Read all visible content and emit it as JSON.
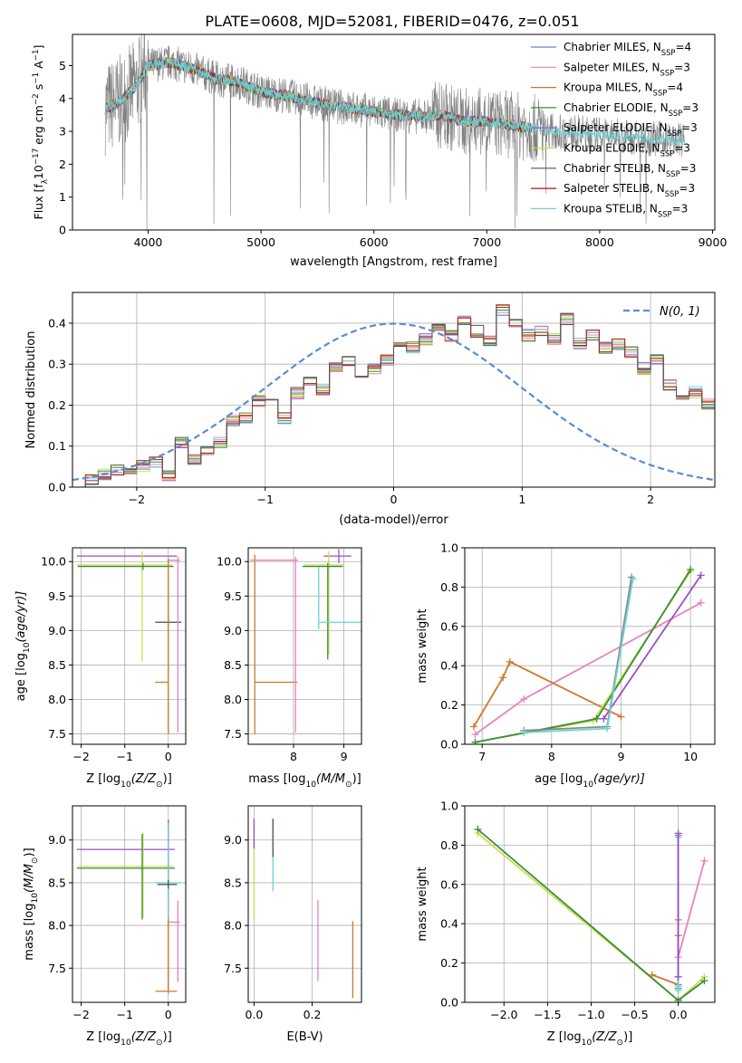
{
  "figure": {
    "title": "PLATE=0608, MJD=52081, FIBERID=0476, z=0.051"
  },
  "legend_entries": [
    {
      "label": "Chabrier MILES, N",
      "sub": "SSP",
      "tail": "=4",
      "color": "#6a7fd8"
    },
    {
      "label": "Salpeter MILES, N",
      "sub": "SSP",
      "tail": "=3",
      "color": "#e882be"
    },
    {
      "label": "Kroupa MILES, N",
      "sub": "SSP",
      "tail": "=4",
      "color": "#d0782a"
    },
    {
      "label": "Chabrier ELODIE, N",
      "sub": "SSP",
      "tail": "=3",
      "color": "#3d8c3d"
    },
    {
      "label": "Salpeter ELODIE, N",
      "sub": "SSP",
      "tail": "=3",
      "color": "#9a4ec8"
    },
    {
      "label": "Kroupa ELODIE, N",
      "sub": "SSP",
      "tail": "=3",
      "color": "#c8e04a"
    },
    {
      "label": "Chabrier STELIB, N",
      "sub": "SSP",
      "tail": "=3",
      "color": "#555555"
    },
    {
      "label": "Salpeter STELIB, N",
      "sub": "SSP",
      "tail": "=3",
      "color": "#b01010"
    },
    {
      "label": "Kroupa STELIB, N",
      "sub": "SSP",
      "tail": "=3",
      "color": "#6ad4d8"
    }
  ],
  "chart_data": [
    {
      "id": "spectrum",
      "type": "line",
      "ylabel": "Flux [f",
      "ylabel_sub": "λ",
      "ylabel_tail": "10",
      "ylabel_sup1": "−17",
      "ylabel_tail2": " erg cm",
      "ylabel_sup2": "−2",
      "ylabel_tail3": " s",
      "ylabel_sup3": "−1",
      "ylabel_tail4": " A",
      "ylabel_sup4": "−1",
      "ylabel_end": "]",
      "xlabel": "wavelength [Angstrom, rest frame]",
      "xlim": [
        3330,
        9020
      ],
      "ylim": [
        0,
        5.95
      ],
      "xticks": [
        "4000",
        "5000",
        "6000",
        "7000",
        "8000",
        "9000"
      ],
      "xtick_values": [
        4000,
        5000,
        6000,
        7000,
        8000,
        9000
      ],
      "yticks": [
        "0",
        "1",
        "2",
        "3",
        "4",
        "5"
      ],
      "ytick_values": [
        0,
        1,
        2,
        3,
        4,
        5
      ],
      "continuum": {
        "x": [
          3620,
          3750,
          3900,
          4000,
          4200,
          4400,
          4600,
          4800,
          5000,
          5200,
          5400,
          5600,
          5800,
          6000,
          6200,
          6400,
          6600,
          6800,
          7000,
          7200,
          7400,
          7600,
          7800,
          8000,
          8200,
          8400,
          8600,
          8750
        ],
        "y": [
          3.7,
          3.9,
          4.4,
          5.0,
          5.1,
          4.9,
          4.6,
          4.5,
          4.2,
          4.1,
          3.95,
          3.8,
          3.7,
          3.6,
          3.5,
          3.45,
          3.5,
          3.3,
          3.3,
          3.2,
          3.1,
          3.0,
          2.95,
          2.9,
          2.85,
          2.8,
          2.75,
          2.7
        ]
      }
    },
    {
      "id": "residual_histogram",
      "type": "bar",
      "xlabel": "(data-model)/error",
      "ylabel": "Normed distribution",
      "xlim": [
        -2.5,
        2.5
      ],
      "ylim": [
        0,
        0.475
      ],
      "xticks": [
        "−2",
        "−1",
        "0",
        "1",
        "2"
      ],
      "xtick_values": [
        -2,
        -1,
        0,
        1,
        2
      ],
      "yticks": [
        "0.0",
        "0.1",
        "0.2",
        "0.3",
        "0.4"
      ],
      "ytick_values": [
        0,
        0.1,
        0.2,
        0.3,
        0.4
      ],
      "legend": "N(0, 1)",
      "bin_width": 0.1,
      "bin_start": -2.5,
      "values": [
        0.01,
        0.02,
        0.03,
        0.04,
        0.03,
        0.05,
        0.06,
        0.03,
        0.11,
        0.07,
        0.09,
        0.11,
        0.16,
        0.17,
        0.21,
        0.21,
        0.17,
        0.23,
        0.26,
        0.24,
        0.29,
        0.31,
        0.26,
        0.29,
        0.31,
        0.35,
        0.34,
        0.36,
        0.39,
        0.37,
        0.41,
        0.38,
        0.36,
        0.43,
        0.4,
        0.37,
        0.38,
        0.36,
        0.41,
        0.35,
        0.37,
        0.34,
        0.35,
        0.33,
        0.29,
        0.31,
        0.25,
        0.21,
        0.23,
        0.2,
        0.16,
        0.14,
        0.11,
        0.1,
        0.08,
        0.07,
        0.05,
        0.04,
        0.04,
        0.03
      ]
    },
    {
      "id": "age_vs_Z",
      "type": "scatter",
      "xlabel": "Z [log",
      "xlabel_sub": "10",
      "xlabel_tail": "(Z/Z",
      "xlabel_sub2": "⊙",
      "xlabel_end": ")]",
      "ylabel": "age  [log",
      "ylabel_sub": "10",
      "ylabel_tail": "(age/yr)]",
      "xlim": [
        -2.2,
        0.4
      ],
      "ylim": [
        7.35,
        10.2
      ],
      "xticks": [
        "−2",
        "−1",
        "0"
      ],
      "xtick_values": [
        -2,
        -1,
        0
      ],
      "yticks": [
        "7.5",
        "8.0",
        "8.5",
        "9.0",
        "9.5",
        "10.0"
      ],
      "ytick_values": [
        7.5,
        8.0,
        8.5,
        9.0,
        9.5,
        10.0
      ],
      "points": [
        {
          "x": 0.0,
          "y": 10.08,
          "xerr": [
            2.1,
            0.2
          ],
          "yerr": [
            0.0,
            0.0
          ],
          "color": "#9a4ec8"
        },
        {
          "x": -0.6,
          "y": 9.95,
          "xerr": [
            1.5,
            0.7
          ],
          "yerr": [
            1.4,
            0.2
          ],
          "color": "#c8e04a"
        },
        {
          "x": -0.58,
          "y": 9.93,
          "xerr": [
            1.5,
            0.7
          ],
          "yerr": [
            0.05,
            0.05
          ],
          "color": "#3d8c3d"
        },
        {
          "x": 0.0,
          "y": 9.12,
          "xerr": [
            0.3,
            0.3
          ],
          "yerr": [
            1.6,
            0.9
          ],
          "color": "#6ad4d8"
        },
        {
          "x": 0.0,
          "y": 9.12,
          "xerr": [
            0.3,
            0.3
          ],
          "yerr": [
            0.05,
            0.05
          ],
          "color": "#555555"
        },
        {
          "x": 0.0,
          "y": 8.25,
          "xerr": [
            0.3,
            0.0
          ],
          "yerr": [
            0.75,
            1.8
          ],
          "color": "#d0782a"
        },
        {
          "x": 0.22,
          "y": 10.02,
          "xerr": [
            0.2,
            0.05
          ],
          "yerr": [
            2.5,
            0.05
          ],
          "color": "#e882be"
        }
      ]
    },
    {
      "id": "age_vs_mass",
      "type": "scatter",
      "xlabel": "mass [log",
      "xlabel_sub": "10",
      "xlabel_tail": "(M/M",
      "xlabel_sub2": "⊙",
      "xlabel_end": ")]",
      "xlim": [
        7.1,
        9.35
      ],
      "ylim": [
        7.35,
        10.2
      ],
      "xticks": [
        "8",
        "9"
      ],
      "xtick_values": [
        8,
        9
      ],
      "yticks": [
        "7.5",
        "8.0",
        "8.5",
        "9.0",
        "9.5",
        "10.0"
      ],
      "ytick_values": [
        7.5,
        8.0,
        8.5,
        9.0,
        9.5,
        10.0
      ],
      "points": [
        {
          "x": 8.9,
          "y": 10.08,
          "xerr": [
            0.3,
            0.25
          ],
          "yerr": [
            0.1,
            0.1
          ],
          "color": "#9a4ec8"
        },
        {
          "x": 8.7,
          "y": 9.95,
          "xerr": [
            0.5,
            0.3
          ],
          "yerr": [
            1.3,
            0.2
          ],
          "color": "#c8e04a"
        },
        {
          "x": 8.68,
          "y": 9.93,
          "xerr": [
            0.5,
            0.3
          ],
          "yerr": [
            1.35,
            0.05
          ],
          "color": "#3d8c3d"
        },
        {
          "x": 8.5,
          "y": 9.12,
          "xerr": [
            0.0,
            0.9
          ],
          "yerr": [
            0.1,
            0.8
          ],
          "color": "#6ad4d8"
        },
        {
          "x": 7.23,
          "y": 8.25,
          "xerr": [
            0.0,
            0.85
          ],
          "yerr": [
            0.75,
            1.85
          ],
          "color": "#d0782a"
        },
        {
          "x": 8.04,
          "y": 10.02,
          "xerr": [
            0.9,
            0.05
          ],
          "yerr": [
            2.5,
            0.05
          ],
          "color": "#e882be"
        }
      ]
    },
    {
      "id": "massweight_vs_age",
      "type": "line",
      "xlabel": "age  [log",
      "xlabel_sub": "10",
      "xlabel_tail": "(age/yr)]",
      "ylabel": "mass weight",
      "xlim": [
        6.75,
        10.35
      ],
      "ylim": [
        0,
        1.0
      ],
      "xticks": [
        "7",
        "8",
        "9",
        "10"
      ],
      "xtick_values": [
        7,
        8,
        9,
        10
      ],
      "yticks": [
        "0.0",
        "0.2",
        "0.4",
        "0.6",
        "0.8",
        "1.0"
      ],
      "ytick_values": [
        0,
        0.2,
        0.4,
        0.6,
        0.8,
        1.0
      ],
      "series": [
        {
          "color": "#e882be",
          "x": [
            6.9,
            7.6,
            10.15
          ],
          "y": [
            0.05,
            0.23,
            0.72
          ]
        },
        {
          "color": "#d0782a",
          "x": [
            6.88,
            7.3,
            7.4,
            9.0
          ],
          "y": [
            0.09,
            0.34,
            0.42,
            0.14
          ]
        },
        {
          "color": "#9a4ec8",
          "x": [
            8.75,
            10.15
          ],
          "y": [
            0.13,
            0.86
          ]
        },
        {
          "color": "#c8e04a",
          "x": [
            6.9,
            8.6,
            10.0
          ],
          "y": [
            0.01,
            0.12,
            0.88
          ]
        },
        {
          "color": "#3d8c3d",
          "x": [
            6.9,
            8.65,
            10.0
          ],
          "y": [
            0.01,
            0.13,
            0.89
          ]
        },
        {
          "color": "#888888",
          "x": [
            7.6,
            8.8,
            9.15
          ],
          "y": [
            0.07,
            0.09,
            0.85
          ]
        },
        {
          "color": "#6ad4d8",
          "x": [
            7.6,
            8.8,
            9.17
          ],
          "y": [
            0.06,
            0.08,
            0.84
          ]
        }
      ]
    },
    {
      "id": "mass_vs_Z",
      "type": "scatter",
      "xlabel": "Z [log",
      "xlabel_sub": "10",
      "xlabel_tail": "(Z/Z",
      "xlabel_sub2": "⊙",
      "xlabel_end": ")]",
      "ylabel": "mass [log",
      "ylabel_sub": "10",
      "ylabel_tail": "(M/M",
      "ylabel_sub2": "⊙",
      "ylabel_end": ")]",
      "xlim": [
        -2.2,
        0.4
      ],
      "ylim": [
        7.1,
        9.4
      ],
      "xticks": [
        "−2",
        "−1",
        "0"
      ],
      "xtick_values": [
        -2,
        -1,
        0
      ],
      "yticks": [
        "7.5",
        "8.0",
        "8.5",
        "9.0"
      ],
      "ytick_values": [
        7.5,
        8.0,
        8.5,
        9.0
      ],
      "points": [
        {
          "x": 0.0,
          "y": 8.89,
          "xerr": [
            2.1,
            0.15
          ],
          "yerr": [
            0.0,
            0.35
          ],
          "color": "#9a4ec8"
        },
        {
          "x": -0.58,
          "y": 8.69,
          "xerr": [
            1.5,
            0.7
          ],
          "yerr": [
            0.6,
            0.4
          ],
          "color": "#c8e04a"
        },
        {
          "x": -0.6,
          "y": 8.67,
          "xerr": [
            1.5,
            0.75
          ],
          "yerr": [
            0.6,
            0.4
          ],
          "color": "#3d8c3d"
        },
        {
          "x": 0.0,
          "y": 8.6,
          "xerr": [
            0.0,
            0.0
          ],
          "yerr": [
            1.4,
            0.6
          ],
          "color": "#b01010"
        },
        {
          "x": 0.0,
          "y": 8.5,
          "xerr": [
            0.3,
            0.3
          ],
          "yerr": [
            1.3,
            0.7
          ],
          "color": "#6ad4d8"
        },
        {
          "x": 0.0,
          "y": 8.48,
          "xerr": [
            0.25,
            0.2
          ],
          "yerr": [
            0.05,
            0.05
          ],
          "color": "#555555"
        },
        {
          "x": 0.0,
          "y": 7.23,
          "xerr": [
            0.3,
            0.2
          ],
          "yerr": [
            0.0,
            0.85
          ],
          "color": "#d0782a"
        },
        {
          "x": 0.22,
          "y": 8.04,
          "xerr": [
            0.2,
            0.05
          ],
          "yerr": [
            0.7,
            0.25
          ],
          "color": "#e882be"
        }
      ]
    },
    {
      "id": "mass_vs_EBV",
      "type": "scatter",
      "xlabel": "E(B-V)",
      "xlim": [
        -0.02,
        0.37
      ],
      "ylim": [
        7.1,
        9.4
      ],
      "xticks": [
        "0.0",
        "0.2"
      ],
      "xtick_values": [
        0.0,
        0.2
      ],
      "yticks": [
        "7.5",
        "8.0",
        "8.5",
        "9.0"
      ],
      "ytick_values": [
        7.5,
        8.0,
        8.5,
        9.0
      ],
      "points": [
        {
          "x": 0.0,
          "y": 8.7,
          "xerr": [
            0,
            0
          ],
          "yerr": [
            0.6,
            0.55
          ],
          "color": "#c8e04a"
        },
        {
          "x": 0.0,
          "y": 8.9,
          "xerr": [
            0,
            0
          ],
          "yerr": [
            0.0,
            0.35
          ],
          "color": "#9a4ec8"
        },
        {
          "x": 0.065,
          "y": 8.85,
          "xerr": [
            0,
            0
          ],
          "yerr": [
            0.45,
            0.4
          ],
          "color": "#6ad4d8"
        },
        {
          "x": 0.065,
          "y": 9.0,
          "xerr": [
            0,
            0
          ],
          "yerr": [
            0.2,
            0.25
          ],
          "color": "#555555"
        },
        {
          "x": 0.22,
          "y": 7.8,
          "xerr": [
            0,
            0
          ],
          "yerr": [
            0.45,
            0.5
          ],
          "color": "#e882be"
        },
        {
          "x": 0.34,
          "y": 7.6,
          "xerr": [
            0,
            0
          ],
          "yerr": [
            0.45,
            0.45
          ],
          "color": "#d0782a"
        }
      ]
    },
    {
      "id": "massweight_vs_Z",
      "type": "line",
      "xlabel": "Z [log",
      "xlabel_sub": "10",
      "xlabel_tail": "(Z/Z",
      "xlabel_sub2": "⊙",
      "xlabel_end": ")]",
      "ylabel": "mass weight",
      "xlim": [
        -2.45,
        0.42
      ],
      "ylim": [
        0,
        1.0
      ],
      "xticks": [
        "−2.0",
        "−1.5",
        "−1.0",
        "−0.5",
        "0.0"
      ],
      "xtick_values": [
        -2.0,
        -1.5,
        -1.0,
        -0.5,
        0.0
      ],
      "yticks": [
        "0.0",
        "0.2",
        "0.4",
        "0.6",
        "0.8",
        "1.0"
      ],
      "ytick_values": [
        0,
        0.2,
        0.4,
        0.6,
        0.8,
        1.0
      ],
      "series": [
        {
          "color": "#c8e04a",
          "x": [
            -2.3,
            0.0,
            0.3
          ],
          "y": [
            0.86,
            0.01,
            0.13
          ]
        },
        {
          "color": "#3d8c3d",
          "x": [
            -2.3,
            0.0,
            0.3
          ],
          "y": [
            0.88,
            0.01,
            0.11
          ]
        },
        {
          "color": "#d0782a",
          "x": [
            -0.3,
            0.0,
            0.0,
            0.0
          ],
          "y": [
            0.14,
            0.09,
            0.34,
            0.42
          ]
        },
        {
          "color": "#e882be",
          "x": [
            0.0,
            0.3
          ],
          "y": [
            0.23,
            0.72
          ]
        },
        {
          "color": "#888888",
          "x": [
            0.0,
            0.0,
            0.0
          ],
          "y": [
            0.07,
            0.09,
            0.85
          ]
        },
        {
          "color": "#6ad4d8",
          "x": [
            0.0,
            0.0,
            0.0
          ],
          "y": [
            0.06,
            0.08,
            0.84
          ]
        },
        {
          "color": "#9a4ec8",
          "x": [
            0.0,
            0.0
          ],
          "y": [
            0.13,
            0.86
          ]
        }
      ]
    }
  ]
}
